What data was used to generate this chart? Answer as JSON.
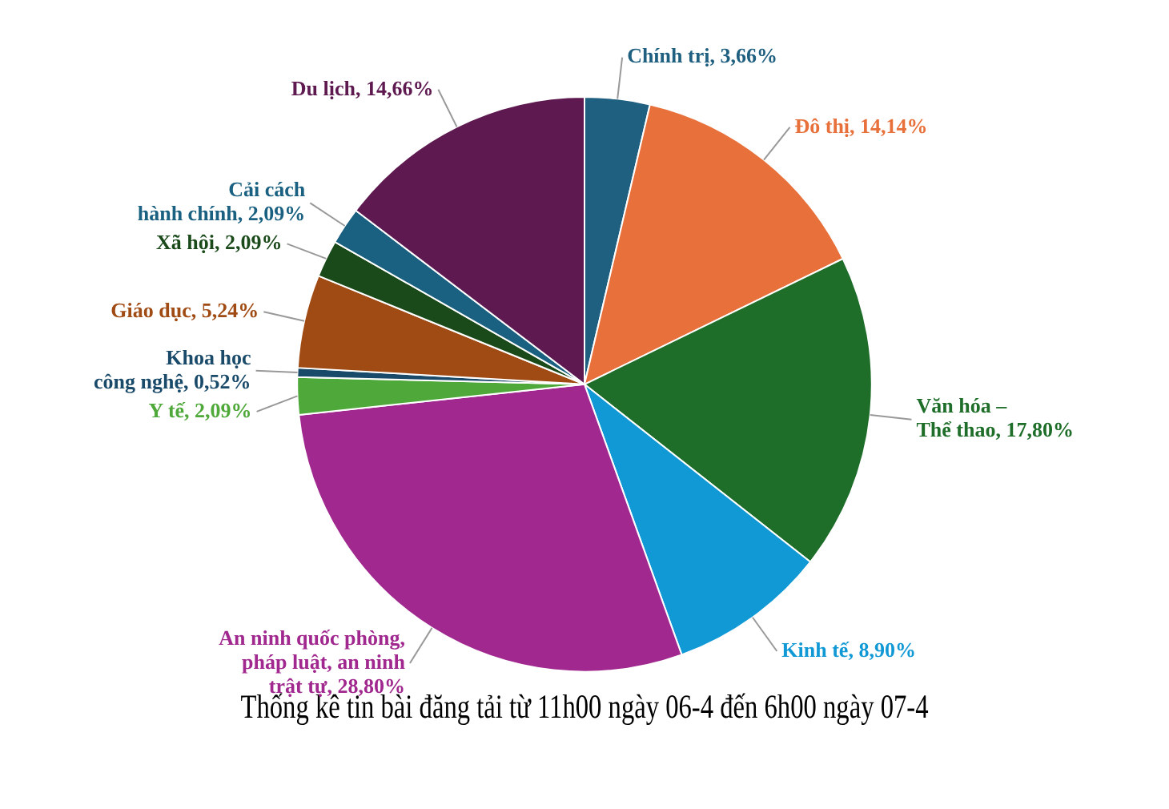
{
  "chart_data": {
    "type": "pie",
    "title": "Thống kê tin bài đăng tải từ 11h00 ngày 06-4 đến 6h00 ngày 07-4",
    "categories": [
      "Chính trị",
      "Đô thị",
      "Văn hóa – Thể thao",
      "Kinh tế",
      "An ninh quốc phòng, pháp luật, an ninh trật tự",
      "Y tế",
      "Khoa học công nghệ",
      "Giáo dục",
      "Xã hội",
      "Cải cách hành chính",
      "Du lịch"
    ],
    "values": [
      3.66,
      14.14,
      17.8,
      8.9,
      28.8,
      2.09,
      0.52,
      5.24,
      2.09,
      2.09,
      14.66
    ],
    "value_labels": [
      "3,66%",
      "14,14%",
      "17,80%",
      "8,90%",
      "28,80%",
      "2,09%",
      "0,52%",
      "5,24%",
      "2,09%",
      "2,09%",
      "14,66%"
    ],
    "colors": [
      "#1f5f80",
      "#e8703a",
      "#1e6e2a",
      "#1199d6",
      "#a0288f",
      "#4fa83a",
      "#1a4a6a",
      "#a04a14",
      "#1a4a1a",
      "#1a6080",
      "#5e1a50"
    ]
  }
}
